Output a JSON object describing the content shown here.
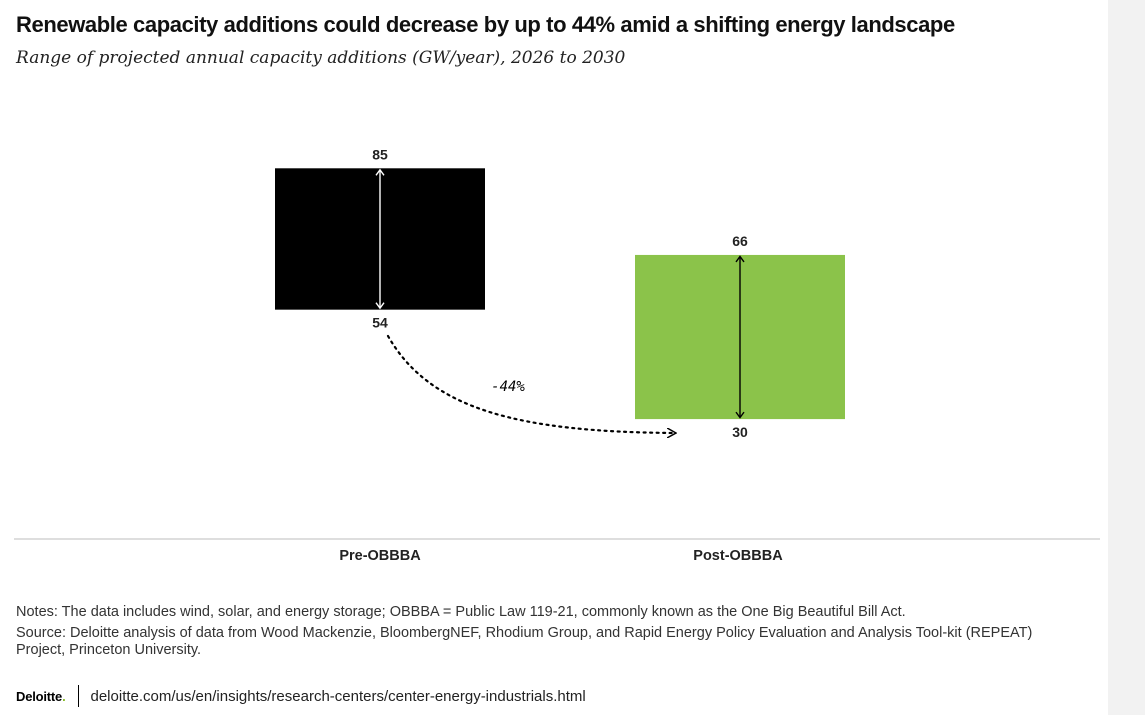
{
  "title": "Renewable capacity additions could decrease by up to 44% amid a shifting energy landscape",
  "subtitle": "Range of projected annual capacity additions (GW/year), 2026 to 2030",
  "chart_data": {
    "type": "range-bar",
    "title": "Renewable capacity additions could decrease by up to 44% amid a shifting energy landscape",
    "subtitle": "Range of projected annual capacity additions (GW/year), 2026 to 2030",
    "unit": "GW/year",
    "ylim": [
      20,
      95
    ],
    "categories": [
      "Pre-OBBBA",
      "Post-OBBBA"
    ],
    "series": [
      {
        "name": "Pre-OBBBA",
        "low": 54,
        "high": 85,
        "color": "#000000",
        "high_label": "85",
        "low_label": "54"
      },
      {
        "name": "Post-OBBBA",
        "low": 30,
        "high": 66,
        "color": "#8bc34a",
        "high_label": "66",
        "low_label": "30"
      }
    ],
    "annotation": {
      "text": "-44%",
      "from": "Pre-OBBBA",
      "to": "Post-OBBBA",
      "style": "dotted-arrow"
    },
    "grid": false,
    "legend": "none"
  },
  "notes": "Notes: The data includes wind, solar, and energy storage; OBBBA = Public Law 119-21, commonly known as the One Big Beautiful Bill Act.",
  "source": "Source: Deloitte analysis of data from Wood Mackenzie, BloombergNEF, Rhodium Group, and Rapid Energy Policy Evaluation and Analysis Tool-kit (REPEAT) Project, Princeton University.",
  "footer": {
    "logo": "Deloitte",
    "logo_dot": ".",
    "url": "deloitte.com/us/en/insights/research-centers/center-energy-industrials.html"
  }
}
